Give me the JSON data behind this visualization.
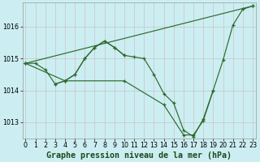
{
  "title": "Graphe pression niveau de la mer (hPa)",
  "background_color": "#cceef2",
  "line_color": "#2d6a2d",
  "ylim": [
    1012.5,
    1016.75
  ],
  "xlim": [
    -0.3,
    23.3
  ],
  "yticks": [
    1013,
    1014,
    1015,
    1016
  ],
  "xticks": [
    0,
    1,
    2,
    3,
    4,
    5,
    6,
    7,
    8,
    9,
    10,
    11,
    12,
    13,
    14,
    15,
    16,
    17,
    18,
    19,
    20,
    21,
    22,
    23
  ],
  "tick_fontsize": 5.8,
  "label_fontsize": 7.2,
  "lines": [
    {
      "x": [
        0,
        23
      ],
      "y": [
        1014.85,
        1016.65
      ],
      "markers": true
    },
    {
      "x": [
        0,
        1,
        2,
        3,
        4,
        5,
        6,
        7,
        8,
        9,
        10,
        11,
        12,
        13,
        14,
        15,
        16,
        17,
        18,
        19,
        20,
        21,
        22,
        23
      ],
      "y": [
        1014.85,
        1014.85,
        1014.65,
        1014.2,
        1014.3,
        1014.5,
        1015.0,
        1015.35,
        1015.55,
        1015.35,
        1015.1,
        1015.05,
        1015.0,
        1014.5,
        1013.9,
        1013.6,
        1012.75,
        1012.55,
        1013.1,
        1014.0,
        1014.95,
        1016.05,
        1016.55,
        1016.65
      ],
      "markers": true
    },
    {
      "x": [
        0,
        4,
        10,
        14,
        16,
        17,
        18,
        19
      ],
      "y": [
        1014.85,
        1014.3,
        1014.3,
        1013.55,
        1012.6,
        1012.6,
        1013.05,
        1014.0
      ],
      "markers": true
    },
    {
      "x": [
        3,
        4,
        5,
        6,
        7,
        8,
        9,
        10
      ],
      "y": [
        1014.2,
        1014.3,
        1014.5,
        1015.0,
        1015.35,
        1015.55,
        1015.35,
        1015.1
      ],
      "markers": true
    }
  ]
}
